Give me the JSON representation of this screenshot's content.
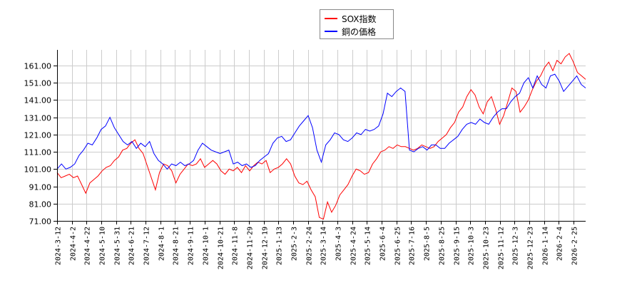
{
  "chart_data": {
    "type": "line",
    "title": "",
    "xlabel": "",
    "ylabel": "",
    "ylim": [
      71,
      171
    ],
    "yticks": [
      71,
      81,
      91,
      101,
      111,
      121,
      131,
      141,
      151,
      161
    ],
    "ytick_labels": [
      "71.00",
      "81.00",
      "91.00",
      "101.00",
      "111.00",
      "121.00",
      "131.00",
      "141.00",
      "151.00",
      "161.00"
    ],
    "xtick_labels": [
      "2024-3-12",
      "2024-4-2",
      "2024-4-22",
      "2024-5-10",
      "2024-5-31",
      "2024-6-21",
      "2024-7-12",
      "2024-8-1",
      "2024-8-21",
      "2024-9-11",
      "2024-10-1",
      "2024-10-21",
      "2024-11-8",
      "2024-11-29",
      "2024-12-19",
      "2025-1-13",
      "2025-2-3",
      "2025-2-24",
      "2025-3-14",
      "2025-4-3",
      "2025-4-24",
      "2025-5-14",
      "2025-6-4",
      "2025-6-25",
      "2025-7-16",
      "2025-8-5",
      "2025-8-25",
      "2025-9-15",
      "2025-10-3",
      "2025-10-23",
      "2025-11-12",
      "2025-12-3",
      "2025-12-23",
      "2026-1-14",
      "2026-2-4",
      "2026-2-25"
    ],
    "grid": true,
    "legend_position": "top-center",
    "series": [
      {
        "name": "SOX指数",
        "color": "#ff0000",
        "values": [
          99,
          96,
          97,
          98,
          96,
          97,
          92,
          87,
          93,
          95,
          97,
          100,
          102,
          103,
          106,
          108,
          112,
          113,
          116,
          118,
          113,
          110,
          103,
          96,
          89,
          99,
          104,
          103,
          100,
          93,
          98,
          101,
          104,
          103,
          104,
          107,
          102,
          104,
          106,
          104,
          100,
          98,
          101,
          100,
          102,
          99,
          103,
          100,
          103,
          105,
          104,
          106,
          99,
          101,
          102,
          104,
          107,
          104,
          97,
          93,
          92,
          94,
          89,
          85,
          73,
          72,
          82,
          76,
          80,
          86,
          89,
          92,
          97,
          101,
          100,
          98,
          99,
          104,
          107,
          111,
          112,
          114,
          113,
          115,
          114,
          114,
          113,
          112,
          113,
          115,
          114,
          113,
          114,
          117,
          119,
          121,
          125,
          128,
          134,
          137,
          143,
          147,
          144,
          137,
          133,
          140,
          143,
          136,
          127,
          132,
          140,
          148,
          146,
          134,
          137,
          141,
          147,
          152,
          155,
          160,
          163,
          158,
          164,
          162,
          166,
          168,
          163,
          157,
          155,
          153
        ]
      },
      {
        "name": "銅の価格",
        "color": "#0000ff",
        "values": [
          101,
          104,
          101,
          102,
          104,
          109,
          112,
          116,
          115,
          119,
          124,
          126,
          131,
          125,
          121,
          117,
          115,
          117,
          113,
          116,
          114,
          117,
          110,
          106,
          104,
          101,
          104,
          103,
          105,
          103,
          104,
          106,
          112,
          116,
          114,
          112,
          111,
          110,
          111,
          112,
          104,
          105,
          103,
          104,
          102,
          103,
          106,
          108,
          110,
          116,
          119,
          120,
          117,
          118,
          122,
          126,
          129,
          132,
          125,
          112,
          105,
          115,
          118,
          122,
          121,
          118,
          117,
          119,
          122,
          121,
          124,
          123,
          124,
          126,
          133,
          145,
          143,
          146,
          148,
          146,
          112,
          111,
          113,
          114,
          112,
          115,
          115,
          113,
          113,
          116,
          118,
          120,
          124,
          127,
          128,
          127,
          130,
          128,
          127,
          131,
          134,
          136,
          136,
          140,
          143,
          145,
          151,
          154,
          148,
          155,
          150,
          148,
          155,
          156,
          152,
          146,
          149,
          152,
          155,
          150,
          148
        ]
      }
    ]
  },
  "legend": {
    "items": [
      {
        "label": "SOX指数",
        "color": "#ff0000"
      },
      {
        "label": "銅の価格",
        "color": "#0000ff"
      }
    ]
  }
}
